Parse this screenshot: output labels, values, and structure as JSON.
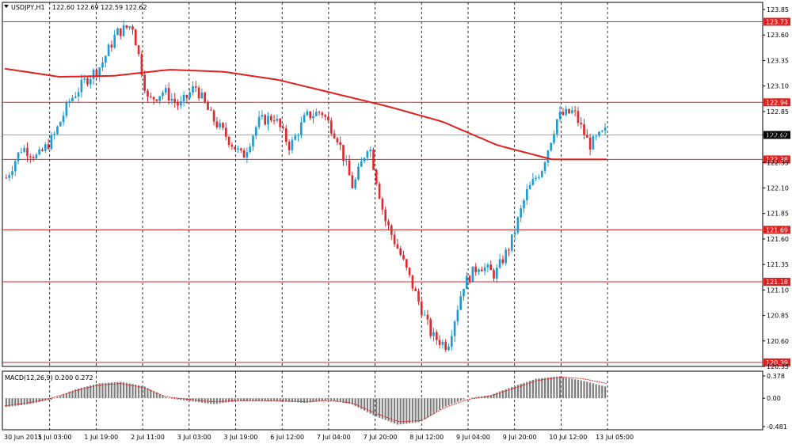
{
  "window": {
    "symbol_label": "USDJPY,H1",
    "ohlc_text": "122.60 122.69 122.59 122.62"
  },
  "colors": {
    "bull": "#1e9bd6",
    "bear": "#e0292e",
    "level_line": "#e01f1f",
    "ma_line": "#e01f1f",
    "macd_hist": "#808080",
    "macd_signal": "#e01f1f",
    "current_price_box": "#000000"
  },
  "chart_data": {
    "type": "candlestick",
    "price_axis": {
      "ylim": [
        120.35,
        123.92
      ],
      "ticks": [
        "123.85",
        "123.60",
        "123.35",
        "123.10",
        "122.85",
        "122.62",
        "122.35",
        "122.10",
        "121.85",
        "121.60",
        "121.35",
        "121.10",
        "120.85",
        "120.60",
        "120.35"
      ]
    },
    "levels": [
      "123.73",
      "122.94",
      "122.38",
      "121.69",
      "121.18",
      "120.39"
    ],
    "current_price": "122.62",
    "time_labels": [
      "30 Jun 2015",
      "1 Jul 03:00",
      "1 Jul 19:00",
      "2 Jul 11:00",
      "3 Jul 03:00",
      "3 Jul 19:00",
      "6 Jul 12:00",
      "7 Jul 04:00",
      "7 Jul 20:00",
      "8 Jul 12:00",
      "9 Jul 04:00",
      "9 Jul 20:00",
      "10 Jul 12:00",
      "13 Jul 05:00"
    ],
    "price_path": [
      122.2,
      122.5,
      122.4,
      122.6,
      122.95,
      123.15,
      123.3,
      123.62,
      123.7,
      122.95,
      123.05,
      122.9,
      123.1,
      122.8,
      122.6,
      122.4,
      122.75,
      122.8,
      122.5,
      122.8,
      122.85,
      122.6,
      122.1,
      122.55,
      121.8,
      121.45,
      121.05,
      120.65,
      120.55,
      121.15,
      121.35,
      121.25,
      121.55,
      122.05,
      122.3,
      122.8,
      122.85,
      122.52,
      122.65
    ],
    "ma_path": [
      123.27,
      123.19,
      123.2,
      123.26,
      123.24,
      123.16,
      123.03,
      122.9,
      122.75,
      122.52,
      122.38,
      122.38
    ],
    "macd": {
      "label": "MACD(12,26,9) 0.200 0.272",
      "ticks": [
        "0.378",
        "0.00",
        "-0.481"
      ],
      "range": [
        -0.481,
        0.378
      ],
      "hist_path": [
        -0.15,
        -0.1,
        -0.02,
        0.15,
        0.25,
        0.28,
        0.2,
        0.0,
        -0.05,
        -0.1,
        -0.05,
        -0.05,
        -0.05,
        -0.08,
        -0.03,
        -0.1,
        -0.3,
        -0.45,
        -0.4,
        -0.15,
        0.0,
        0.05,
        0.2,
        0.33,
        0.37,
        0.3,
        0.2
      ],
      "signal_path": [
        -0.13,
        -0.08,
        0.0,
        0.12,
        0.22,
        0.25,
        0.18,
        0.02,
        -0.02,
        -0.06,
        -0.04,
        -0.04,
        -0.05,
        -0.06,
        -0.04,
        -0.08,
        -0.25,
        -0.4,
        -0.38,
        -0.16,
        -0.02,
        0.04,
        0.17,
        0.3,
        0.36,
        0.33,
        0.25
      ]
    }
  }
}
